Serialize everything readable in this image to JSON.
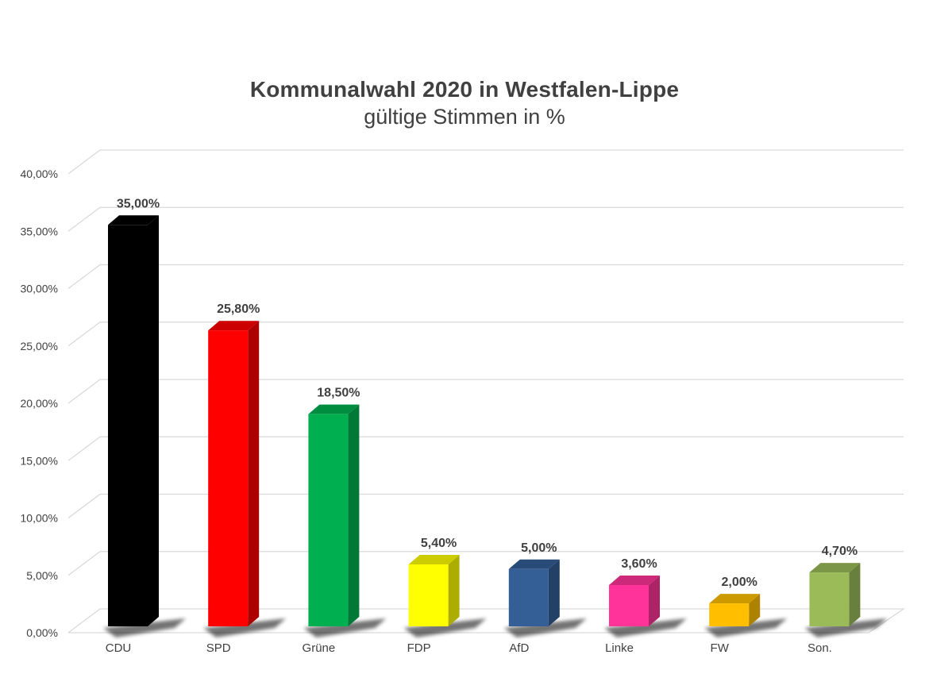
{
  "chart_data": {
    "type": "bar",
    "title": "Kommunalwahl 2020 in Westfalen-Lippe",
    "subtitle": "gültige Stimmen in %",
    "categories": [
      "CDU",
      "SPD",
      "Grüne",
      "FDP",
      "AfD",
      "Linke",
      "FW",
      "Son."
    ],
    "values": [
      35.0,
      25.8,
      18.5,
      5.4,
      5.0,
      3.6,
      2.0,
      4.7
    ],
    "data_labels": [
      "35,00%",
      "25,80%",
      "18,50%",
      "5,40%",
      "5,00%",
      "3,60%",
      "2,00%",
      "4,70%"
    ],
    "colors": [
      "#000000",
      "#ff0000",
      "#00b050",
      "#ffff00",
      "#335e96",
      "#ff3399",
      "#ffbf00",
      "#9bbb59"
    ],
    "ylim": [
      0,
      40
    ],
    "yticks": [
      0,
      5,
      10,
      15,
      20,
      25,
      30,
      35,
      40
    ],
    "ytick_labels": [
      "0,00%",
      "5,00%",
      "10,00%",
      "15,00%",
      "20,00%",
      "25,00%",
      "30,00%",
      "35,00%",
      "40,00%"
    ],
    "xlabel": "",
    "ylabel": "",
    "grid": true,
    "legend": "none",
    "style": "3d-column"
  }
}
